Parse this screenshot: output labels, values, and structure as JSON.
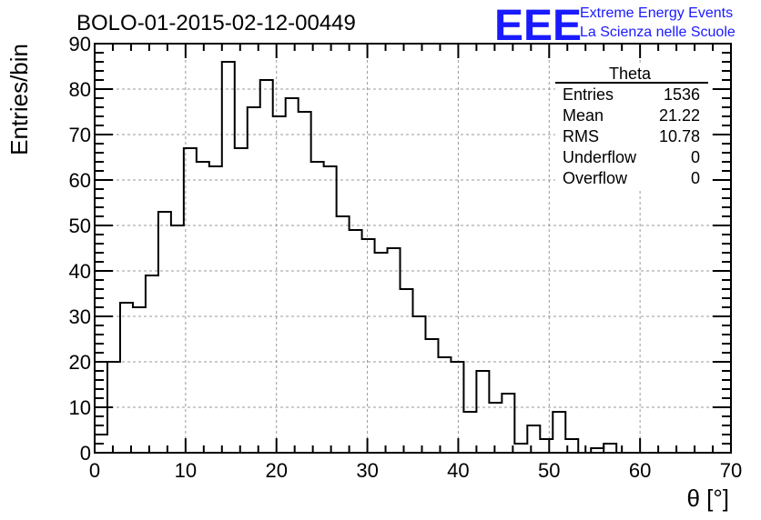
{
  "chart_data": {
    "type": "bar",
    "style": "step-histogram",
    "title": "BOLO-01-2015-02-12-00449",
    "xlabel": "θ [°]",
    "ylabel": "Entries/bin",
    "xlim": [
      0,
      70
    ],
    "ylim": [
      0,
      90
    ],
    "x_ticks": [
      0,
      10,
      20,
      30,
      40,
      50,
      60,
      70
    ],
    "y_ticks": [
      0,
      10,
      20,
      30,
      40,
      50,
      60,
      70,
      80,
      90
    ],
    "grid": true,
    "bin_width": 1.4,
    "bin_edges_start": 0,
    "values": [
      4,
      20,
      33,
      32,
      39,
      53,
      50,
      67,
      64,
      63,
      86,
      67,
      76,
      82,
      74,
      78,
      75,
      64,
      63,
      52,
      49,
      47,
      44,
      45,
      36,
      30,
      25,
      21,
      20,
      9,
      18,
      11,
      13,
      2,
      6,
      3,
      9,
      3,
      0,
      1,
      2,
      0,
      0,
      0,
      0,
      0,
      0,
      0,
      0,
      0
    ],
    "stats_box": {
      "title": "Theta",
      "rows": [
        {
          "label": "Entries",
          "value": "1536"
        },
        {
          "label": "Mean",
          "value": "21.22"
        },
        {
          "label": "RMS",
          "value": "10.78"
        },
        {
          "label": "Underflow",
          "value": "0"
        },
        {
          "label": "Overflow",
          "value": "0"
        }
      ]
    },
    "colors": {
      "line": "#000000",
      "grid": "#999999",
      "logo": "#1a1aff"
    }
  },
  "logo": {
    "mark": "EEE",
    "line1": "Extreme Energy Events",
    "line2": "La Scienza nelle Scuole"
  }
}
